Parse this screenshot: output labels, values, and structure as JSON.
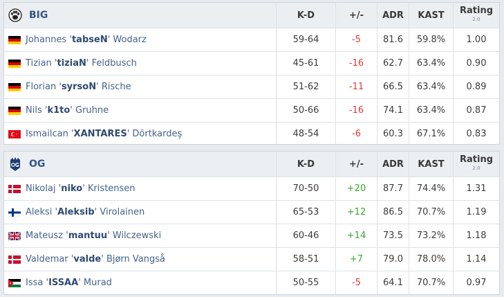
{
  "columns": {
    "kd": "K-D",
    "pm": "+/-",
    "adr": "ADR",
    "kast": "KAST",
    "rating": "Rating",
    "rating_sub": "2.0"
  },
  "teams": [
    {
      "name": "BIG",
      "logo_icon": "big-paw-logo-icon",
      "players": [
        {
          "first": "Johannes",
          "nick": "tabseN",
          "last": "Wodarz",
          "flag": "germany-flag-icon",
          "kd": "59-64",
          "pm": "-5",
          "adr": "81.6",
          "kast": "59.8%",
          "rating": "1.00"
        },
        {
          "first": "Tizian",
          "nick": "tiziaN",
          "last": "Feldbusch",
          "flag": "germany-flag-icon",
          "kd": "45-61",
          "pm": "-16",
          "adr": "62.7",
          "kast": "63.4%",
          "rating": "0.90"
        },
        {
          "first": "Florian",
          "nick": "syrsoN",
          "last": "Rische",
          "flag": "germany-flag-icon",
          "kd": "51-62",
          "pm": "-11",
          "adr": "66.5",
          "kast": "63.4%",
          "rating": "0.89"
        },
        {
          "first": "Nils",
          "nick": "k1to",
          "last": "Gruhne",
          "flag": "germany-flag-icon",
          "kd": "50-66",
          "pm": "-16",
          "adr": "74.1",
          "kast": "63.4%",
          "rating": "0.87"
        },
        {
          "first": "Ismailcan",
          "nick": "XANTARES",
          "last": "Dörtkardeş",
          "flag": "turkey-flag-icon",
          "kd": "48-54",
          "pm": "-6",
          "adr": "60.3",
          "kast": "67.1%",
          "rating": "0.83"
        }
      ]
    },
    {
      "name": "OG",
      "logo_icon": "og-logo-icon",
      "players": [
        {
          "first": "Nikolaj",
          "nick": "niko",
          "last": "Kristensen",
          "flag": "denmark-flag-icon",
          "kd": "70-50",
          "pm": "+20",
          "adr": "87.7",
          "kast": "74.4%",
          "rating": "1.31"
        },
        {
          "first": "Aleksi",
          "nick": "Aleksib",
          "last": "Virolainen",
          "flag": "finland-flag-icon",
          "kd": "65-53",
          "pm": "+12",
          "adr": "86.5",
          "kast": "70.7%",
          "rating": "1.19"
        },
        {
          "first": "Mateusz",
          "nick": "mantuu",
          "last": "Wilczewski",
          "flag": "uk-flag-icon",
          "kd": "60-46",
          "pm": "+14",
          "adr": "73.5",
          "kast": "73.2%",
          "rating": "1.18"
        },
        {
          "first": "Valdemar",
          "nick": "valde",
          "last": "Bjørn Vangså",
          "flag": "denmark-flag-icon",
          "kd": "58-51",
          "pm": "+7",
          "adr": "79.0",
          "kast": "78.0%",
          "rating": "1.14"
        },
        {
          "first": "Issa",
          "nick": "ISSAA",
          "last": "Murad",
          "flag": "jordan-flag-icon",
          "kd": "50-55",
          "pm": "-5",
          "adr": "64.1",
          "kast": "70.7%",
          "rating": "0.97"
        }
      ]
    }
  ]
}
